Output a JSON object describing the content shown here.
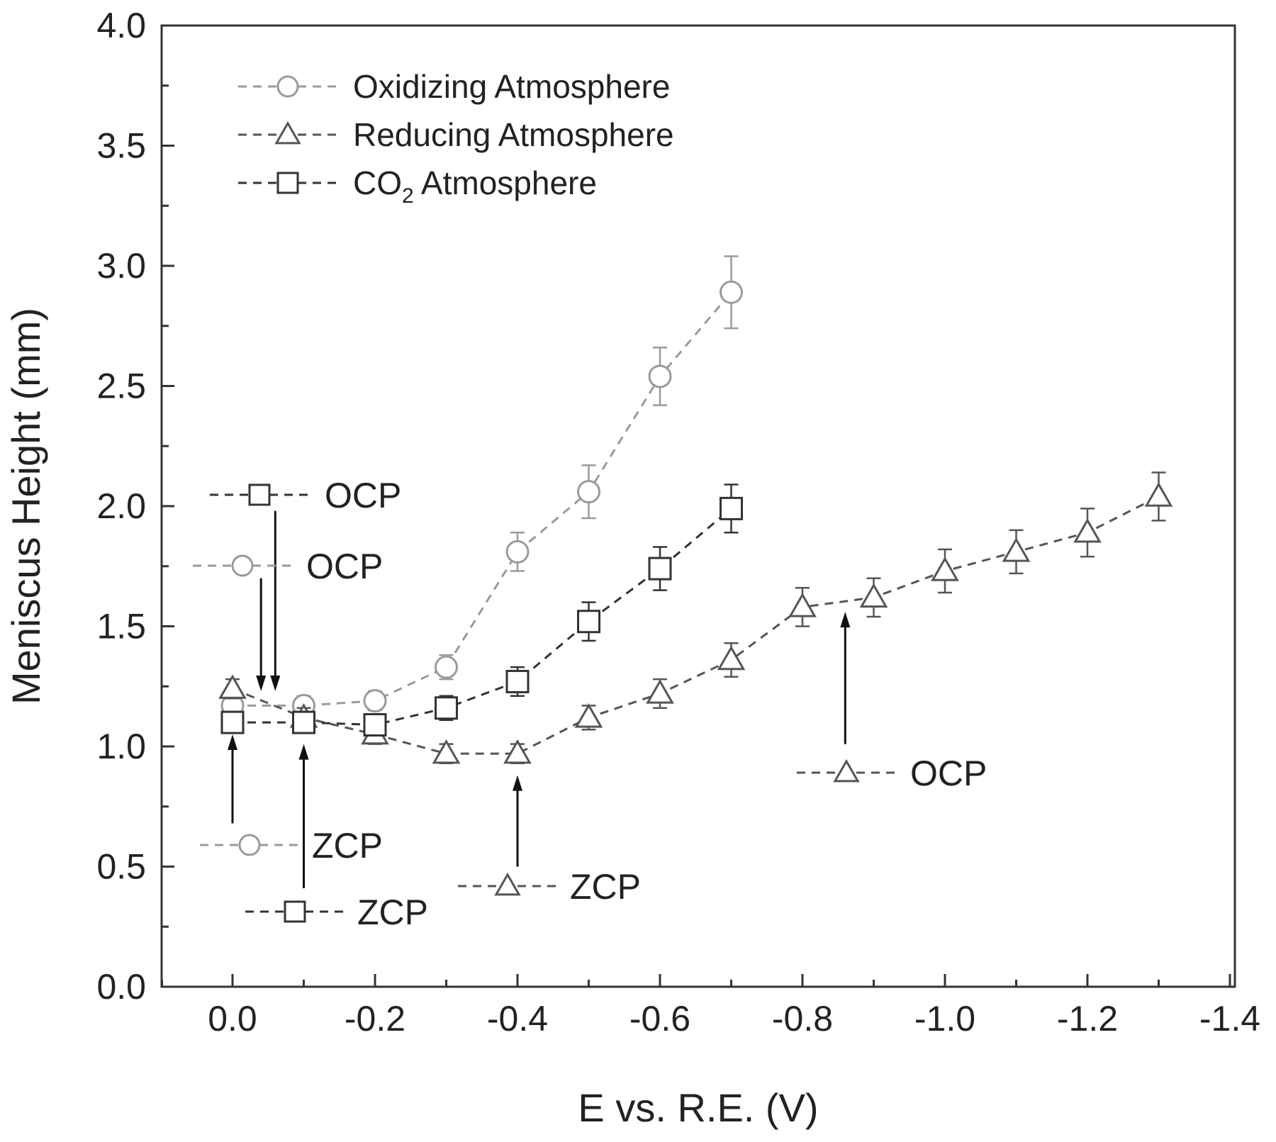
{
  "chart_data": {
    "type": "scatter",
    "title": "",
    "xlabel": "E vs. R.E. (V)",
    "ylabel": "Meniscus Height (mm)",
    "xlim": [
      0.1,
      -1.4
    ],
    "ylim": [
      0,
      4.0
    ],
    "x_ticks": [
      0.0,
      -0.2,
      -0.4,
      -0.6,
      -0.8,
      -1.0,
      -1.2,
      -1.4
    ],
    "x_tick_labels": [
      "0.0",
      "-0.2",
      "-0.4",
      "-0.6",
      "-0.8",
      "-1.0",
      "-1.2",
      "-1.4"
    ],
    "y_ticks": [
      0.0,
      0.5,
      1.0,
      1.5,
      2.0,
      2.5,
      3.0,
      3.5,
      4.0
    ],
    "y_tick_labels": [
      "0.0",
      "0.5",
      "1.0",
      "1.5",
      "2.0",
      "2.5",
      "3.0",
      "3.5",
      "4.0"
    ],
    "grid": false,
    "legend_position": "top-left",
    "series": [
      {
        "name": "Oxidizing Atmosphere",
        "marker": "circle",
        "color": "#9a9a9a",
        "x": [
          0.0,
          -0.1,
          -0.2,
          -0.3,
          -0.4,
          -0.5,
          -0.6,
          -0.7
        ],
        "y": [
          1.17,
          1.17,
          1.19,
          1.33,
          1.81,
          2.06,
          2.54,
          2.89
        ],
        "err": [
          0.04,
          0.04,
          0.04,
          0.05,
          0.08,
          0.11,
          0.12,
          0.15
        ]
      },
      {
        "name": "Reducing Atmosphere",
        "marker": "triangle",
        "color": "#555555",
        "x": [
          0.0,
          -0.1,
          -0.2,
          -0.3,
          -0.4,
          -0.5,
          -0.6,
          -0.7,
          -0.8,
          -0.9,
          -1.0,
          -1.1,
          -1.2,
          -1.3
        ],
        "y": [
          1.24,
          1.12,
          1.05,
          0.97,
          0.97,
          1.12,
          1.22,
          1.36,
          1.58,
          1.62,
          1.73,
          1.81,
          1.89,
          2.04
        ],
        "err": [
          0.04,
          0.04,
          0.04,
          0.04,
          0.04,
          0.05,
          0.06,
          0.07,
          0.08,
          0.08,
          0.09,
          0.09,
          0.1,
          0.1
        ]
      },
      {
        "name": "CO2 Atmosphere",
        "marker": "square",
        "color": "#333333",
        "x": [
          0.0,
          -0.1,
          -0.2,
          -0.3,
          -0.4,
          -0.5,
          -0.6,
          -0.7
        ],
        "y": [
          1.1,
          1.1,
          1.09,
          1.16,
          1.27,
          1.52,
          1.74,
          1.99
        ],
        "err": [
          0.04,
          0.04,
          0.04,
          0.05,
          0.06,
          0.08,
          0.09,
          0.1
        ]
      }
    ],
    "legend_entries": [
      {
        "marker": "circle",
        "color": "#9a9a9a",
        "label": "Oxidizing Atmosphere"
      },
      {
        "marker": "triangle",
        "color": "#555555",
        "label": "Reducing Atmosphere"
      },
      {
        "marker": "square",
        "color": "#333333",
        "label": "CO",
        "sub": "2",
        "label_rest": " Atmosphere"
      }
    ],
    "annotations": [
      {
        "label": "OCP",
        "marker": "square",
        "color": "#333333",
        "arrow_x": -0.06,
        "arrow_from_y": 1.98,
        "arrow_to_y": 1.23
      },
      {
        "label": "OCP",
        "marker": "circle",
        "color": "#9a9a9a",
        "arrow_x": -0.04,
        "arrow_from_y": 1.7,
        "arrow_to_y": 1.23
      },
      {
        "label": "ZCP",
        "marker": "circle",
        "color": "#9a9a9a",
        "arrow_x": 0.0,
        "arrow_from_y": 0.68,
        "arrow_to_y": 1.05
      },
      {
        "label": "ZCP",
        "marker": "square",
        "color": "#333333",
        "arrow_x": -0.1,
        "arrow_from_y": 0.41,
        "arrow_to_y": 1.01
      },
      {
        "label": "ZCP",
        "marker": "triangle",
        "color": "#555555",
        "arrow_x": -0.4,
        "arrow_from_y": 0.5,
        "arrow_to_y": 0.88
      },
      {
        "label": "OCP",
        "marker": "triangle",
        "color": "#555555",
        "arrow_x": -0.86,
        "arrow_from_y": 1.01,
        "arrow_to_y": 1.56
      }
    ]
  }
}
